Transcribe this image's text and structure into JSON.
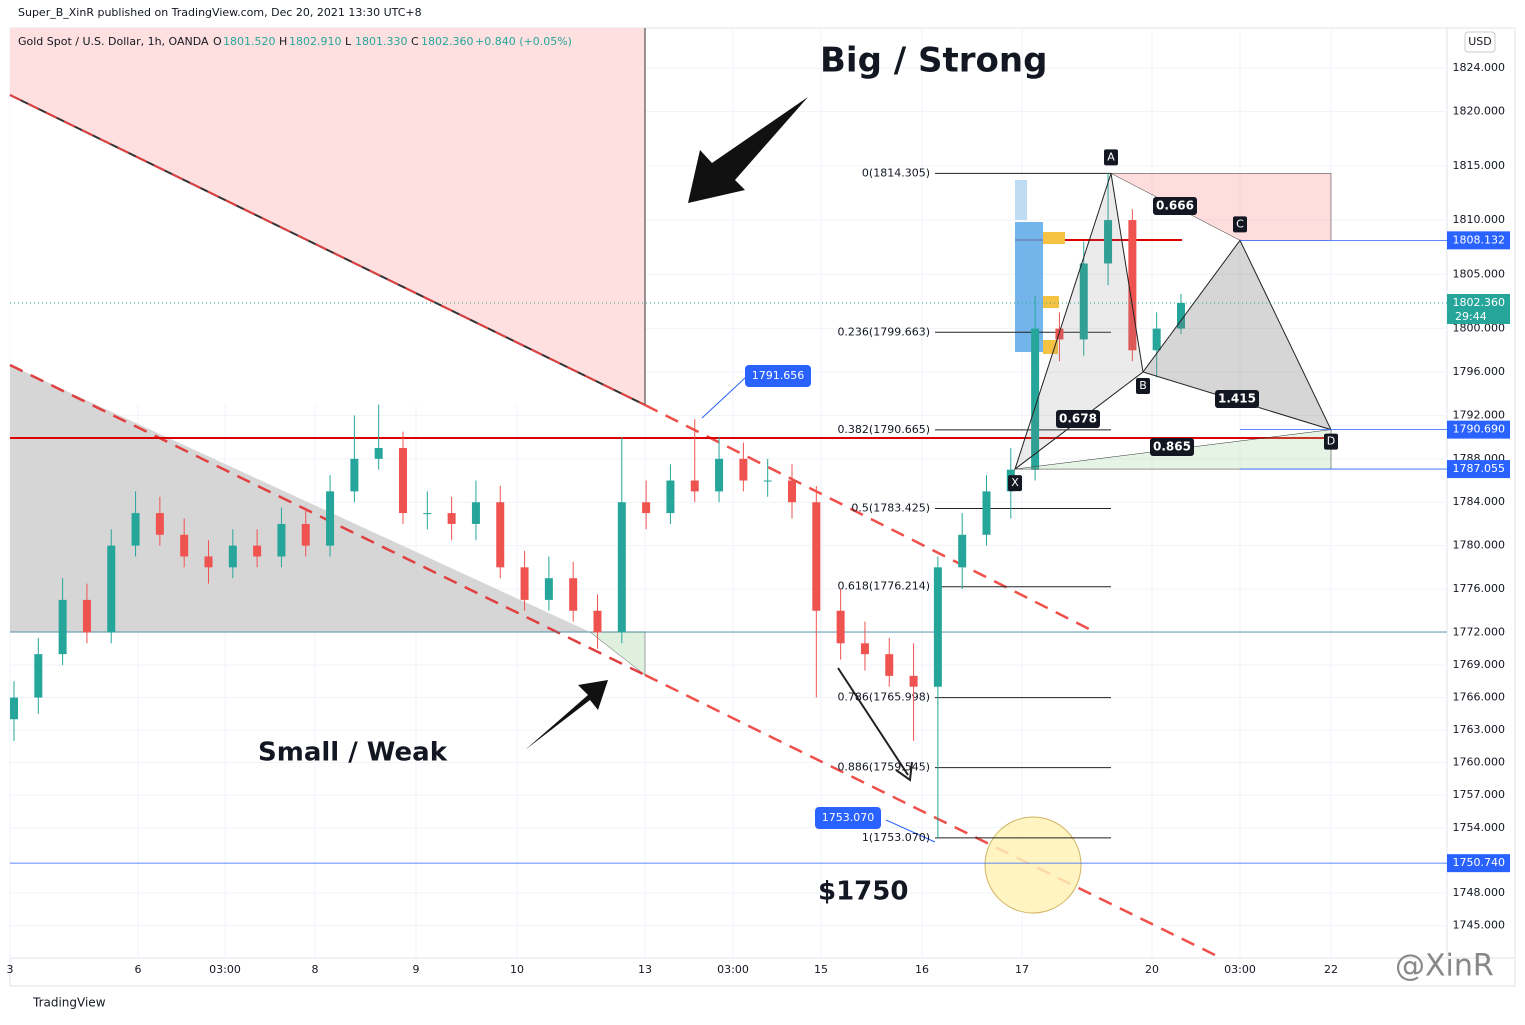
{
  "header": {
    "published": "Super_B_XinR published on TradingView.com, Dec 20, 2021 13:30 UTC+8",
    "symbol": "Gold Spot / U.S. Dollar, 1h, OANDA",
    "ohlc": [
      {
        "key": "O",
        "val": "1801.520"
      },
      {
        "key": "H",
        "val": "1802.910"
      },
      {
        "key": "L",
        "val": "1801.330"
      },
      {
        "key": "C",
        "val": "1802.360"
      }
    ],
    "change": "+0.840 (+0.05%)"
  },
  "currency": "USD",
  "footer": "TradingView",
  "watermark": "@XinR",
  "annotations": {
    "big": "Big / Strong",
    "small": "Small / Weak",
    "level": "$1750"
  },
  "chart_data": {
    "type": "candlestick",
    "ylim": [
      1742,
      1827.7
    ],
    "yticks": [
      {
        "value": 1745,
        "label": "1745.000"
      },
      {
        "value": 1748,
        "label": "1748.000"
      },
      {
        "value": 1754,
        "label": "1754.000"
      },
      {
        "value": 1757,
        "label": "1757.000"
      },
      {
        "value": 1760,
        "label": "1760.000"
      },
      {
        "value": 1763,
        "label": "1763.000"
      },
      {
        "value": 1766,
        "label": "1766.000"
      },
      {
        "value": 1769,
        "label": "1769.000"
      },
      {
        "value": 1772,
        "label": "1772.000"
      },
      {
        "value": 1776,
        "label": "1776.000"
      },
      {
        "value": 1780,
        "label": "1780.000"
      },
      {
        "value": 1784,
        "label": "1784.000"
      },
      {
        "value": 1788,
        "label": "1788.000"
      },
      {
        "value": 1792,
        "label": "1792.000"
      },
      {
        "value": 1796,
        "label": "1796.000"
      },
      {
        "value": 1800,
        "label": "1800.000"
      },
      {
        "value": 1805,
        "label": "1805.000"
      },
      {
        "value": 1810,
        "label": "1810.000"
      },
      {
        "value": 1815,
        "label": "1815.000"
      },
      {
        "value": 1820,
        "label": "1820.000"
      },
      {
        "value": 1824,
        "label": "1824.000"
      }
    ],
    "x_labels": [
      "3",
      "6",
      "03:00",
      "8",
      "9",
      "10",
      "13",
      "03:00",
      "15",
      "16",
      "17",
      "20",
      "03:00",
      "22"
    ],
    "up_color": "#26a69a",
    "down_color": "#ef5350",
    "open": [
      1764,
      1766,
      1770,
      1775,
      1772,
      1780,
      1783,
      1781,
      1779,
      1778,
      1780,
      1779,
      1782,
      1780,
      1785,
      1788,
      1789,
      1783,
      1783,
      1782,
      1784,
      1778,
      1775,
      1777,
      1774,
      1772,
      1784,
      1783,
      1786,
      1785,
      1788,
      1786,
      1786,
      1784,
      1774,
      1771,
      1770,
      1768,
      1767,
      1778,
      1781,
      1785,
      1787,
      1800,
      1799,
      1806,
      1810,
      1798,
      1800
    ],
    "high": [
      1767.5,
      1771.5,
      1777,
      1776.5,
      1781.5,
      1785,
      1784.5,
      1782.5,
      1780.5,
      1781.5,
      1781.5,
      1783.5,
      1783.5,
      1786.5,
      1792,
      1793,
      1790.5,
      1785,
      1784.5,
      1786,
      1785.5,
      1779.5,
      1779,
      1778.5,
      1775.5,
      1790,
      1786,
      1787.5,
      1791.656,
      1790,
      1789.5,
      1788,
      1787.5,
      1785.5,
      1776,
      1773,
      1771.5,
      1771,
      1779,
      1783,
      1786.5,
      1789,
      1803,
      1801.5,
      1808,
      1814.305,
      1811,
      1801.5,
      1803.2
    ],
    "low": [
      1762,
      1764.5,
      1769,
      1771,
      1771,
      1779,
      1780,
      1778,
      1776.5,
      1777,
      1778,
      1778,
      1779,
      1779,
      1784,
      1787,
      1782,
      1781.5,
      1780.5,
      1780.5,
      1777,
      1774,
      1774,
      1773,
      1770.5,
      1771,
      1781.5,
      1782,
      1784,
      1784,
      1785,
      1784.5,
      1782.5,
      1766,
      1769.5,
      1768.5,
      1767,
      1762,
      1753.07,
      1776,
      1780,
      1782.5,
      1786,
      1797,
      1797.5,
      1804,
      1797,
      1795.5,
      1799.5
    ],
    "close": [
      1766,
      1770,
      1775,
      1772,
      1780,
      1783,
      1781,
      1779,
      1778,
      1780,
      1779,
      1782,
      1780,
      1785,
      1788,
      1789,
      1783,
      1783,
      1782,
      1784,
      1778,
      1775,
      1777,
      1774,
      1772,
      1784,
      1783,
      1786,
      1785,
      1788,
      1786,
      1786,
      1784,
      1774,
      1771,
      1770,
      1768,
      1767,
      1778,
      1781,
      1785,
      1787,
      1800,
      1799,
      1806,
      1810,
      1798,
      1800,
      1802.36
    ],
    "fib_levels": [
      {
        "value": 1814.305,
        "label": "0(1814.305)"
      },
      {
        "value": 1799.663,
        "label": "0.236(1799.663)"
      },
      {
        "value": 1790.665,
        "label": "0.382(1790.665)"
      },
      {
        "value": 1783.425,
        "label": "0.5(1783.425)"
      },
      {
        "value": 1776.214,
        "label": "0.618(1776.214)"
      },
      {
        "value": 1765.998,
        "label": "0.786(1765.998)"
      },
      {
        "value": 1759.545,
        "label": "0.886(1759.545)"
      },
      {
        "value": 1753.07,
        "label": "1(1753.070)"
      }
    ],
    "harmonic_points": [
      {
        "label": "X",
        "value": 1787.055
      },
      {
        "label": "A",
        "value": 1814.305
      },
      {
        "label": "B",
        "value": 1796
      },
      {
        "label": "C",
        "value": 1808.132
      },
      {
        "label": "D",
        "value": 1790.69
      }
    ],
    "harmonic_ratios": [
      0.666,
      0.678,
      0.865,
      1.415
    ],
    "price_tags": [
      {
        "value": 1791.656,
        "label": "1791.656"
      },
      {
        "value": 1753.07,
        "label": "1753.070"
      }
    ],
    "axis_tags": [
      {
        "value": 1808.132,
        "label": "1808.132"
      },
      {
        "value": 1790.69,
        "label": "1790.690"
      },
      {
        "value": 1787.055,
        "label": "1787.055"
      },
      {
        "value": 1750.74,
        "label": "1750.740"
      }
    ],
    "last_price": {
      "value": 1802.36,
      "label": "1802.360",
      "countdown": "29:44"
    }
  }
}
